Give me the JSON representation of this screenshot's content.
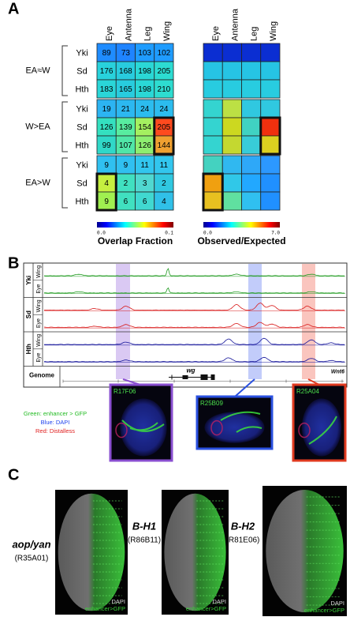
{
  "panels": {
    "a": "A",
    "b": "B",
    "c": "C"
  },
  "heatmap": {
    "columns": [
      "Eye",
      "Antenna",
      "Leg",
      "Wing"
    ],
    "groups": [
      {
        "label": "EA≈W",
        "rows": [
          {
            "label": "Yki",
            "values": [
              89,
              73,
              103,
              102
            ],
            "colors": [
              "#1f8cff",
              "#1f84ff",
              "#1f9cff",
              "#1f9cff"
            ],
            "oe_colors": [
              "#0b2ed2",
              "#0b2ed2",
              "#0b2ed2",
              "#0b2ed2"
            ]
          },
          {
            "label": "Sd",
            "values": [
              176,
              168,
              198,
              205
            ],
            "colors": [
              "#28d2dc",
              "#28ccde",
              "#2ad8d6",
              "#2cdcd2"
            ],
            "oe_colors": [
              "#26c4e4",
              "#26c4e4",
              "#26c4e4",
              "#26c4e4"
            ]
          },
          {
            "label": "Hth",
            "values": [
              183,
              165,
              198,
              210
            ],
            "colors": [
              "#2ad6d8",
              "#28ccde",
              "#2ad8d6",
              "#2edcd0"
            ],
            "oe_colors": [
              "#28cce0",
              "#28cce0",
              "#28cce0",
              "#28cce0"
            ]
          }
        ]
      },
      {
        "label": "W>EA",
        "rows": [
          {
            "label": "Yki",
            "values": [
              19,
              21,
              24,
              24
            ],
            "colors": [
              "#2cb4f2",
              "#2cb8f0",
              "#2cbcee",
              "#2cbcee"
            ],
            "oe_colors": [
              "#34d4d0",
              "#bce044",
              "#30c8e0",
              "#30c8e0"
            ]
          },
          {
            "label": "Sd",
            "values": [
              126,
              139,
              154,
              205
            ],
            "colors": [
              "#34e0c0",
              "#58eca0",
              "#a4f060",
              "#ff4a1e"
            ],
            "oe_colors": [
              "#34d4d0",
              "#ccd820",
              "#40d2c2",
              "#f0300e"
            ]
          },
          {
            "label": "Hth",
            "values": [
              99,
              107,
              126,
              144
            ],
            "colors": [
              "#30d8c8",
              "#50e6a8",
              "#8eee70",
              "#f0a030"
            ],
            "oe_colors": [
              "#34d4d0",
              "#c4d830",
              "#38ccd8",
              "#dcd020"
            ]
          }
        ]
      },
      {
        "label": "EA>W",
        "rows": [
          {
            "label": "Yki",
            "values": [
              9,
              9,
              11,
              11
            ],
            "colors": [
              "#30c0f0",
              "#30c0f0",
              "#32c6ee",
              "#32c6ee"
            ],
            "oe_colors": [
              "#44d2c0",
              "#30b8f0",
              "#2ea8f8",
              "#2c98ff"
            ]
          },
          {
            "label": "Sd",
            "values": [
              4,
              2,
              3,
              2
            ],
            "colors": [
              "#c6f040",
              "#40e0c0",
              "#50d8d0",
              "#30c8e0"
            ],
            "oe_colors": [
              "#f0a010",
              "#30c8e8",
              "#22a8ff",
              "#2090ff"
            ]
          },
          {
            "label": "Hth",
            "values": [
              9,
              6,
              6,
              4
            ],
            "colors": [
              "#a0f050",
              "#40e0c0",
              "#40d8d0",
              "#30c0e8"
            ],
            "oe_colors": [
              "#e8c020",
              "#60e0a0",
              "#30c0f0",
              "#2090ff"
            ]
          }
        ]
      }
    ],
    "colorbars": [
      {
        "min": "0.0",
        "max": "0.1",
        "title": "Overlap Fraction"
      },
      {
        "min": "0.0",
        "max": "7.0",
        "title": "Observed/Expected"
      }
    ]
  },
  "browser": {
    "tracks": [
      {
        "factor": "Yki",
        "samples": [
          "Wing",
          "Eye"
        ],
        "color": "#1f9a1f"
      },
      {
        "factor": "Sd",
        "samples": [
          "Wing",
          "Eye"
        ],
        "color": "#d81818"
      },
      {
        "factor": "Hth",
        "samples": [
          "Wing",
          "Eye"
        ],
        "color": "#14149a"
      }
    ],
    "genome_label": "Genome",
    "genes": [
      "wg",
      "Wnt6"
    ]
  },
  "enhancers": [
    {
      "id": "R17F06",
      "color": "#8a4fd0"
    },
    {
      "id": "R25B09",
      "color": "#2a50e0"
    },
    {
      "id": "R25A04",
      "color": "#e03a20"
    }
  ],
  "stain_legend": [
    {
      "text": "Green: enhancer > GFP",
      "color": "#22bb22"
    },
    {
      "text": "Blue: DAPI",
      "color": "#2244ee"
    },
    {
      "text": "Red: Distalless",
      "color": "#e02020"
    }
  ],
  "discs": [
    {
      "gene": "aop/yan",
      "line": "(R35A01)",
      "dapi": "DAPI",
      "gfp": "enhancer>GFP"
    },
    {
      "gene": "B-H1",
      "line": "(R86B11)",
      "dapi": "DAPI",
      "gfp": "enhancer>GFP"
    },
    {
      "gene": "B-H2",
      "line": "(R81E06)",
      "dapi": "DAPI",
      "gfp": "enhancer>GFP"
    }
  ]
}
